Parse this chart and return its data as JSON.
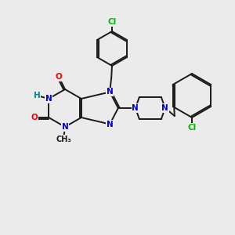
{
  "background_color": "#ebebeb",
  "bond_color": "#1a1a1a",
  "atom_colors": {
    "N": "#0000cc",
    "O": "#ff0000",
    "Cl": "#00bb00",
    "H": "#008888",
    "C": "#1a1a1a"
  },
  "figsize": [
    3.0,
    3.0
  ],
  "dpi": 100
}
